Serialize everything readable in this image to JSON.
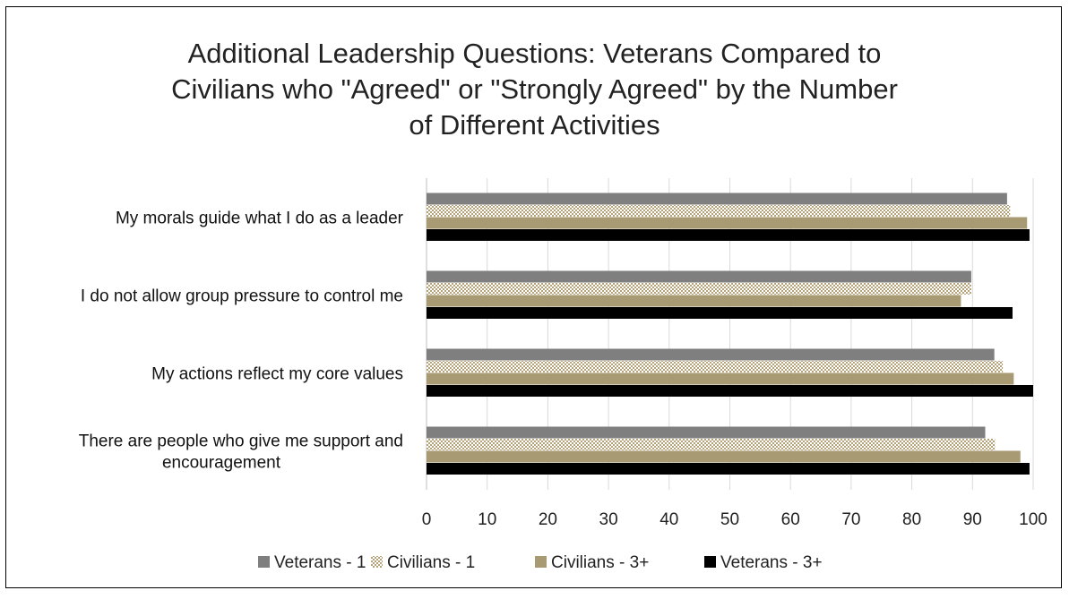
{
  "chart_data": {
    "type": "bar",
    "orientation": "horizontal",
    "title_lines": [
      "Additional Leadership Questions: Veterans Compared to",
      "Civilians who \"Agreed\" or \"Strongly Agreed\"  by the Number",
      "of Different Activities"
    ],
    "categories": [
      [
        "My morals guide what I do as a leader"
      ],
      [
        "I do not allow group pressure to control me"
      ],
      [
        "My actions reflect my core values"
      ],
      [
        "There are people who give me support and",
        "encouragement"
      ]
    ],
    "series": [
      {
        "name": "Veterans - 1",
        "color": "#7f7f7f",
        "pattern": "solid",
        "values": [
          95.7,
          89.8,
          93.6,
          92.1
        ]
      },
      {
        "name": "Civilians - 1",
        "color": "#b5a47a",
        "pattern": "crosshatch",
        "values": [
          96.2,
          89.8,
          95.0,
          93.7
        ]
      },
      {
        "name": "Civilians - 3+",
        "color": "#a89a72",
        "pattern": "solid",
        "values": [
          99.0,
          88.1,
          96.8,
          97.9
        ]
      },
      {
        "name": "Veterans - 3+",
        "color": "#000000",
        "pattern": "solid",
        "values": [
          99.4,
          96.6,
          100.0,
          99.4
        ]
      }
    ],
    "xlim": [
      0,
      100
    ],
    "xticks": [
      "0",
      "10",
      "20",
      "30",
      "40",
      "50",
      "60",
      "70",
      "80",
      "90",
      "100"
    ],
    "grid": true,
    "legend_position": "bottom"
  }
}
